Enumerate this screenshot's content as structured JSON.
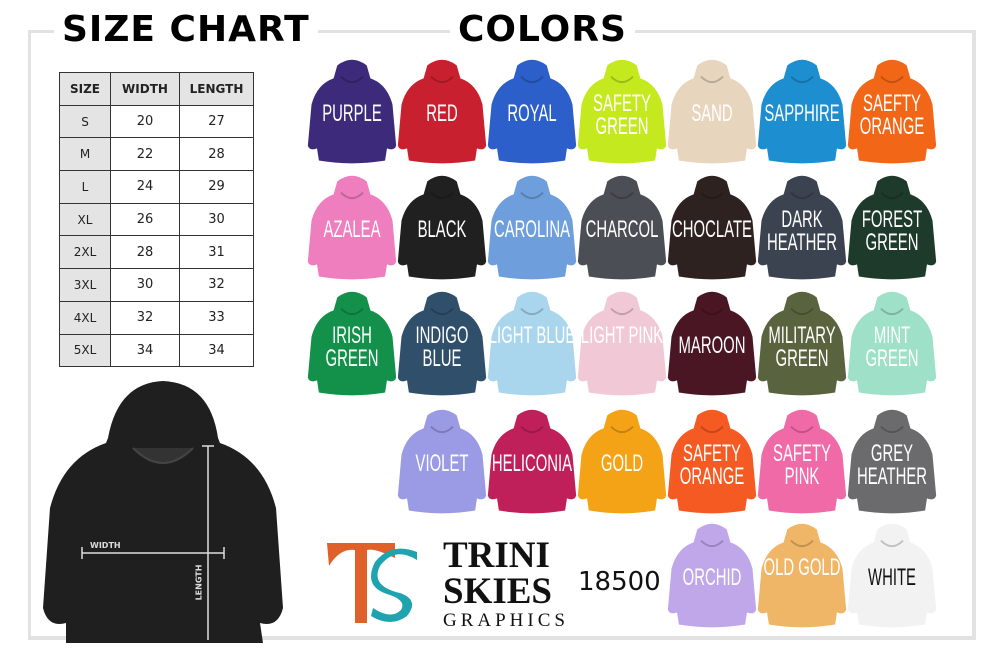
{
  "size_chart": {
    "title": "SIZE CHART",
    "headers": [
      "SIZE",
      "WIDTH",
      "LENGTH"
    ],
    "rows": [
      [
        "S",
        "20",
        "27"
      ],
      [
        "M",
        "22",
        "28"
      ],
      [
        "L",
        "24",
        "29"
      ],
      [
        "XL",
        "26",
        "30"
      ],
      [
        "2XL",
        "28",
        "31"
      ],
      [
        "3XL",
        "30",
        "32"
      ],
      [
        "4XL",
        "32",
        "33"
      ],
      [
        "5XL",
        "34",
        "34"
      ]
    ],
    "width_label": "WIDTH",
    "length_label": "LENGTH",
    "hoodie_color": "#1f1f1f"
  },
  "colors": {
    "title": "COLORS",
    "rows": [
      [
        {
          "label": "PURPLE",
          "color": "#3d2a7a"
        },
        {
          "label": "RED",
          "color": "#c8202e"
        },
        {
          "label": "ROYAL",
          "color": "#2c5fc9"
        },
        {
          "label": "SAFETY GREEN",
          "color": "#c4ea1f"
        },
        {
          "label": "SAND",
          "color": "#e8d5bd"
        },
        {
          "label": "SAPPHIRE",
          "color": "#1d8fd1"
        },
        {
          "label": "SAEFTY ORANGE",
          "color": "#f26617"
        }
      ],
      [
        {
          "label": "AZALEA",
          "color": "#ee7ebd"
        },
        {
          "label": "BLACK",
          "color": "#202020"
        },
        {
          "label": "CAROLINA",
          "color": "#6e9fdc"
        },
        {
          "label": "CHARCOL",
          "color": "#4b4e55"
        },
        {
          "label": "CHOCLATE",
          "color": "#2e2220"
        },
        {
          "label": "DARK HEATHER",
          "color": "#3c4350"
        },
        {
          "label": "FOREST GREEN",
          "color": "#1d3a2a"
        }
      ],
      [
        {
          "label": "IRISH GREEN",
          "color": "#13914a"
        },
        {
          "label": "INDIGO BLUE",
          "color": "#2f4f6b"
        },
        {
          "label": "LIGHT BLUE",
          "color": "#a9d6ec"
        },
        {
          "label": "LIGHT PINK",
          "color": "#f1c9d6"
        },
        {
          "label": "MAROON",
          "color": "#4a1623"
        },
        {
          "label": "MILITARY GREEN",
          "color": "#59633e"
        },
        {
          "label": "MINT GREEN",
          "color": "#9fe0c8"
        }
      ],
      [
        {
          "label": "VIOLET",
          "color": "#9b9ae4"
        },
        {
          "label": "HELICONIA",
          "color": "#c0205a"
        },
        {
          "label": "GOLD",
          "color": "#f4a317"
        },
        {
          "label": "SAFETY ORANGE",
          "color": "#f55a22"
        },
        {
          "label": "SAFETY PINK",
          "color": "#f06aa7"
        },
        {
          "label": "GREY HEATHER",
          "color": "#6b6b6d"
        }
      ],
      [
        {
          "label": "ORCHID",
          "color": "#c0a7ea"
        },
        {
          "label": "OLD GOLD",
          "color": "#f0b667"
        },
        {
          "label": "WHITE",
          "color": "#f2f2f2",
          "text": "#111"
        }
      ]
    ]
  },
  "brand": {
    "line1": "TRINI",
    "line2": "SKIES",
    "line3": "GRAPHICS",
    "logo": "TS",
    "model": "18500"
  }
}
